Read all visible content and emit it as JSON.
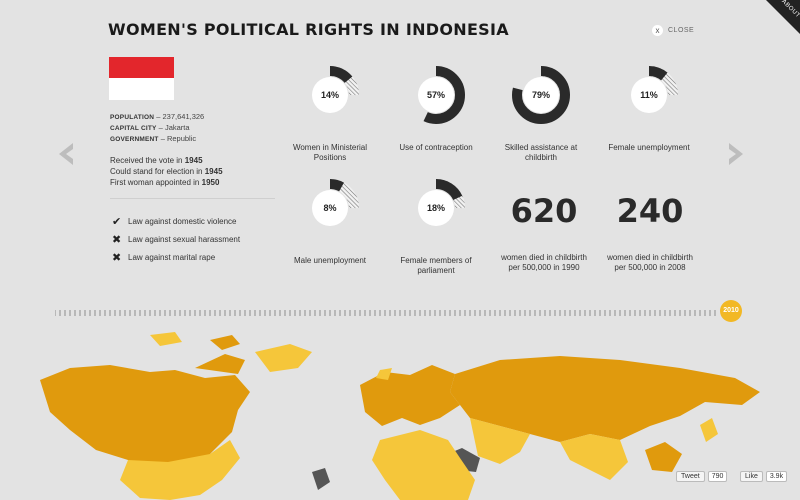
{
  "header": {
    "title": "WOMEN'S POLITICAL RIGHTS IN INDONESIA",
    "close_label": "CLOSE",
    "close_glyph": "x",
    "about_label": "ABOUT"
  },
  "country": {
    "flag_colors": [
      "#e3262c",
      "#ffffff"
    ],
    "facts": [
      {
        "key": "POPULATION",
        "value": "237,641,326"
      },
      {
        "key": "CAPITAL CITY",
        "value": "Jakarta"
      },
      {
        "key": "GOVERNMENT",
        "value": "Republic"
      }
    ],
    "vote": [
      {
        "text": "Received the vote in",
        "year": "1945"
      },
      {
        "text": "Could stand for election in",
        "year": "1945"
      },
      {
        "text": "First woman appointed in",
        "year": "1950"
      }
    ]
  },
  "laws": [
    {
      "label": "Law against domestic violence",
      "status": "yes",
      "icon": "check-icon"
    },
    {
      "label": "Law against sexual harassment",
      "status": "no",
      "icon": "cross-icon"
    },
    {
      "label": "Law against marital rape",
      "status": "no",
      "icon": "cross-icon"
    }
  ],
  "stats": [
    {
      "value": 14,
      "label_value": "14%",
      "caption": [
        "Women in Ministerial",
        "Positions"
      ]
    },
    {
      "value": 57,
      "label_value": "57%",
      "caption": [
        "Use of contraception"
      ]
    },
    {
      "value": 79,
      "label_value": "79%",
      "caption": [
        "Skilled assistance at",
        "childbirth"
      ]
    },
    {
      "value": 11,
      "label_value": "11%",
      "caption": [
        "Female unemployment"
      ]
    },
    {
      "value": 8,
      "label_value": "8%",
      "caption": [
        "Male unemployment"
      ]
    },
    {
      "value": 18,
      "label_value": "18%",
      "caption": [
        "Female members of",
        "parliament"
      ]
    }
  ],
  "big_numbers": [
    {
      "value": "620",
      "caption": [
        "women died in childbirth",
        "per 500,000 in 1990"
      ]
    },
    {
      "value": "240",
      "caption": [
        "women died in childbirth",
        "per 500,000 in 2008"
      ]
    }
  ],
  "timeline": {
    "selected_year": "2010"
  },
  "colors": {
    "accent": "#f2b824",
    "map_dark": "#e09a0d",
    "map_light": "#f5c63a",
    "no_data": "#555555",
    "ink": "#2a2a2a"
  },
  "social": {
    "tweet_label": "Tweet",
    "tweet_count": "790",
    "like_label": "Like",
    "like_count": "3.9k"
  }
}
